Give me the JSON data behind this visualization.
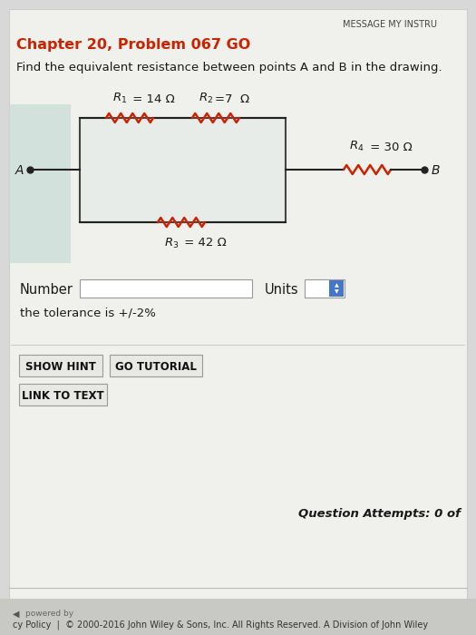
{
  "bg_color": "#d8d8d8",
  "panel_color": "#f0f0ec",
  "title": "Chapter 20, Problem 067 GO",
  "subtitle": "Find the equivalent resistance between points A and B in the drawing.",
  "msg_button": "MESSAGE MY INSTRU",
  "R1_val": " = 14 Ω",
  "R2_val": "=7  Ω",
  "R3_val": " = 42 Ω",
  "R4_val": " = 30 Ω",
  "node_A": "A",
  "node_B": "B",
  "number_label": "Number",
  "units_label": "Units",
  "tolerance_text": "the tolerance is +/-2%",
  "btn1": "SHOW HINT",
  "btn2": "GO TUTORIAL",
  "btn3": "LINK TO TEXT",
  "footer_text": "cy Policy  |  © 2000-2016 John Wiley & Sons, Inc. All Rights Reserved. A Division of John Wiley",
  "question_attempts": "Question Attempts: 0 of",
  "title_color": "#cc2200",
  "text_color": "#1a1a1a",
  "resistor_color": "#cc2200",
  "wire_color": "#222222",
  "box_fill": "#e8ece8",
  "box_stroke": "#444444",
  "swirl_color": "#c8dcd8"
}
